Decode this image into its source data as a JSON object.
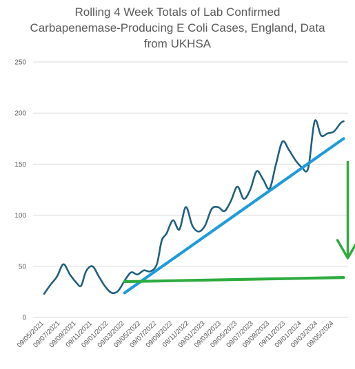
{
  "chart_data": {
    "type": "line",
    "title_lines": [
      "Rolling 4 Week Totals of Lab Confirmed",
      "Carbapenemase-Producing E Coli Cases, England, Data",
      "from UKHSA"
    ],
    "ylim": [
      0,
      250
    ],
    "yticks": [
      0,
      50,
      100,
      150,
      200,
      250
    ],
    "x_tick_labels": [
      "09/05/2021",
      "09/07/2021",
      "09/09/2021",
      "09/11/2021",
      "09/01/2022",
      "09/03/2022",
      "09/05/2022",
      "09/07/2022",
      "09/09/2022",
      "09/11/2022",
      "09/01/2023",
      "09/03/2023",
      "09/05/2023",
      "09/07/2023",
      "09/09/2023",
      "09/11/2023",
      "09/01/2024",
      "09/03/2024",
      "09/05/2024"
    ],
    "grid": true,
    "series": [
      {
        "color": "#1f5f7f",
        "x": [
          0.0,
          0.4,
          0.8,
          1.2,
          1.6,
          2.0,
          2.3,
          2.6,
          3.0,
          3.4,
          3.8,
          4.2,
          4.6,
          5.0,
          5.4,
          5.8,
          6.2,
          6.6,
          7.0,
          7.3,
          7.6,
          8.0,
          8.4,
          8.8,
          9.2,
          9.6,
          10.0,
          10.4,
          10.8,
          11.2,
          11.6,
          12.0,
          12.4,
          12.8,
          13.2,
          13.6,
          14.0,
          14.4,
          14.8,
          15.2,
          15.6,
          16.0,
          16.4,
          16.8,
          17.2,
          17.6,
          18.0,
          18.4,
          18.6
        ],
        "values": [
          23,
          32,
          40,
          52,
          42,
          34,
          31,
          45,
          50,
          40,
          30,
          24,
          26,
          36,
          44,
          42,
          46,
          45,
          52,
          75,
          82,
          95,
          86,
          108,
          90,
          84,
          90,
          106,
          108,
          104,
          114,
          128,
          116,
          125,
          143,
          135,
          126,
          150,
          172,
          164,
          154,
          147,
          146,
          192,
          178,
          180,
          182,
          190,
          192
        ]
      },
      {
        "color": "#1e9bdb",
        "x": [
          5.0,
          18.6
        ],
        "values": [
          24,
          175
        ]
      },
      {
        "color": "#2eab3f",
        "x": [
          5.0,
          18.6
        ],
        "values": [
          35,
          39
        ]
      }
    ],
    "annotations": [
      {
        "type": "arrow",
        "color": "#2eab3f",
        "x": 18.6,
        "from": 153,
        "to": 58
      }
    ]
  }
}
